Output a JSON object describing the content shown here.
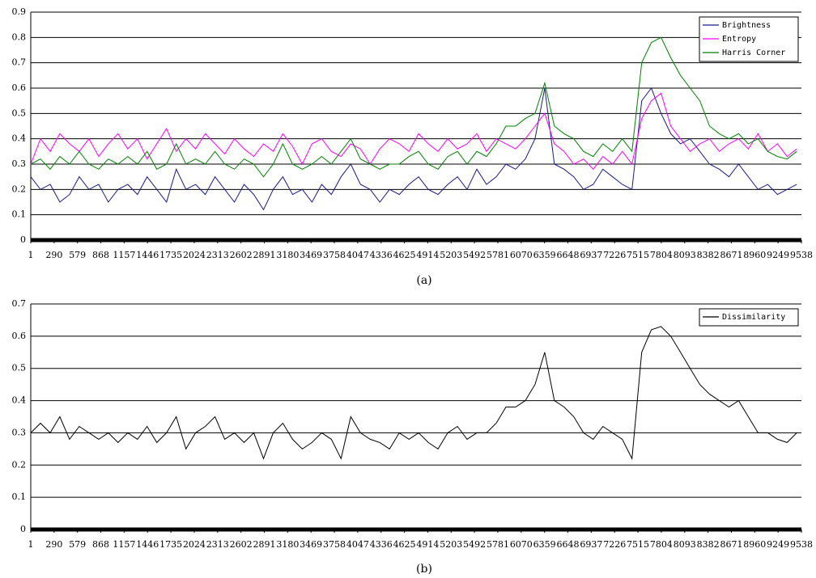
{
  "chart_data": [
    {
      "type": "line",
      "caption": "(a)",
      "legend": "upper right",
      "grid": true,
      "xlim": [
        1,
        9538
      ],
      "ylim": [
        0,
        0.9
      ],
      "yticks": [
        0,
        0.1,
        0.2,
        0.3,
        0.4,
        0.5,
        0.6,
        0.7,
        0.8,
        0.9
      ],
      "xticks": [
        1,
        290,
        579,
        868,
        1157,
        1446,
        1735,
        2024,
        2313,
        2602,
        2891,
        3180,
        3469,
        3758,
        4047,
        4336,
        4625,
        4914,
        5203,
        5492,
        5781,
        6070,
        6359,
        6648,
        6937,
        7226,
        7515,
        7804,
        8093,
        8382,
        8671,
        8960,
        9249,
        9538
      ],
      "x": [
        1,
        121,
        241,
        361,
        481,
        601,
        721,
        841,
        961,
        1081,
        1201,
        1321,
        1441,
        1561,
        1681,
        1801,
        1921,
        2041,
        2161,
        2281,
        2401,
        2521,
        2641,
        2761,
        2881,
        3001,
        3121,
        3241,
        3361,
        3481,
        3601,
        3721,
        3841,
        3961,
        4081,
        4201,
        4321,
        4441,
        4561,
        4681,
        4801,
        4921,
        5041,
        5161,
        5281,
        5401,
        5521,
        5641,
        5761,
        5881,
        6001,
        6121,
        6241,
        6361,
        6481,
        6601,
        6721,
        6841,
        6961,
        7081,
        7201,
        7321,
        7441,
        7561,
        7681,
        7801,
        7921,
        8041,
        8161,
        8281,
        8401,
        8521,
        8641,
        8761,
        8881,
        9001,
        9121,
        9241,
        9361,
        9481
      ],
      "series": [
        {
          "name": "Brightness",
          "color": "#1a1a8c",
          "values": [
            0.25,
            0.2,
            0.22,
            0.15,
            0.18,
            0.25,
            0.2,
            0.22,
            0.15,
            0.2,
            0.22,
            0.18,
            0.25,
            0.2,
            0.15,
            0.28,
            0.2,
            0.22,
            0.18,
            0.25,
            0.2,
            0.15,
            0.22,
            0.18,
            0.12,
            0.2,
            0.25,
            0.18,
            0.2,
            0.15,
            0.22,
            0.18,
            0.25,
            0.3,
            0.22,
            0.2,
            0.15,
            0.2,
            0.18,
            0.22,
            0.25,
            0.2,
            0.18,
            0.22,
            0.25,
            0.2,
            0.28,
            0.22,
            0.25,
            0.3,
            0.28,
            0.32,
            0.4,
            0.6,
            0.3,
            0.28,
            0.25,
            0.2,
            0.22,
            0.28,
            0.25,
            0.22,
            0.2,
            0.55,
            0.6,
            0.5,
            0.42,
            0.38,
            0.4,
            0.35,
            0.3,
            0.28,
            0.25,
            0.3,
            0.25,
            0.2,
            0.22,
            0.18,
            0.2,
            0.22
          ]
        },
        {
          "name": "Entropy",
          "color": "#ff00ff",
          "values": [
            0.3,
            0.4,
            0.35,
            0.42,
            0.38,
            0.35,
            0.4,
            0.33,
            0.38,
            0.42,
            0.36,
            0.4,
            0.32,
            0.38,
            0.44,
            0.35,
            0.4,
            0.36,
            0.42,
            0.38,
            0.34,
            0.4,
            0.36,
            0.33,
            0.38,
            0.35,
            0.42,
            0.37,
            0.3,
            0.38,
            0.4,
            0.35,
            0.33,
            0.38,
            0.36,
            0.3,
            0.36,
            0.4,
            0.38,
            0.35,
            0.42,
            0.38,
            0.35,
            0.4,
            0.36,
            0.38,
            0.42,
            0.35,
            0.4,
            0.38,
            0.36,
            0.4,
            0.45,
            0.5,
            0.38,
            0.35,
            0.3,
            0.32,
            0.28,
            0.33,
            0.3,
            0.35,
            0.3,
            0.48,
            0.55,
            0.58,
            0.45,
            0.4,
            0.35,
            0.38,
            0.4,
            0.35,
            0.38,
            0.4,
            0.36,
            0.42,
            0.35,
            0.38,
            0.33,
            0.36
          ]
        },
        {
          "name": "Harris Corner",
          "color": "#008000",
          "values": [
            0.3,
            0.32,
            0.28,
            0.33,
            0.3,
            0.35,
            0.3,
            0.28,
            0.32,
            0.3,
            0.33,
            0.3,
            0.35,
            0.28,
            0.3,
            0.38,
            0.3,
            0.32,
            0.3,
            0.35,
            0.3,
            0.28,
            0.32,
            0.3,
            0.25,
            0.3,
            0.38,
            0.3,
            0.28,
            0.3,
            0.33,
            0.3,
            0.35,
            0.4,
            0.32,
            0.3,
            0.28,
            0.3,
            0.3,
            0.33,
            0.35,
            0.3,
            0.28,
            0.33,
            0.35,
            0.3,
            0.35,
            0.33,
            0.38,
            0.45,
            0.45,
            0.48,
            0.5,
            0.62,
            0.45,
            0.42,
            0.4,
            0.35,
            0.33,
            0.38,
            0.35,
            0.4,
            0.35,
            0.7,
            0.78,
            0.8,
            0.72,
            0.65,
            0.6,
            0.55,
            0.45,
            0.42,
            0.4,
            0.42,
            0.38,
            0.4,
            0.35,
            0.33,
            0.32,
            0.35
          ]
        }
      ]
    },
    {
      "type": "line",
      "caption": "(b)",
      "legend": "upper right",
      "grid": true,
      "xlim": [
        1,
        9538
      ],
      "ylim": [
        0,
        0.7
      ],
      "yticks": [
        0,
        0.1,
        0.2,
        0.3,
        0.4,
        0.5,
        0.6,
        0.7
      ],
      "xticks": [
        1,
        290,
        579,
        868,
        1157,
        1446,
        1735,
        2024,
        2313,
        2602,
        2891,
        3180,
        3469,
        3758,
        4047,
        4336,
        4625,
        4914,
        5203,
        5492,
        5781,
        6070,
        6359,
        6648,
        6937,
        7226,
        7515,
        7804,
        8093,
        8382,
        8671,
        8960,
        9249,
        9538
      ],
      "x": [
        1,
        121,
        241,
        361,
        481,
        601,
        721,
        841,
        961,
        1081,
        1201,
        1321,
        1441,
        1561,
        1681,
        1801,
        1921,
        2041,
        2161,
        2281,
        2401,
        2521,
        2641,
        2761,
        2881,
        3001,
        3121,
        3241,
        3361,
        3481,
        3601,
        3721,
        3841,
        3961,
        4081,
        4201,
        4321,
        4441,
        4561,
        4681,
        4801,
        4921,
        5041,
        5161,
        5281,
        5401,
        5521,
        5641,
        5761,
        5881,
        6001,
        6121,
        6241,
        6361,
        6481,
        6601,
        6721,
        6841,
        6961,
        7081,
        7201,
        7321,
        7441,
        7561,
        7681,
        7801,
        7921,
        8041,
        8161,
        8281,
        8401,
        8521,
        8641,
        8761,
        8881,
        9001,
        9121,
        9241,
        9361,
        9481
      ],
      "series": [
        {
          "name": "Dissimilarity",
          "color": "#000000",
          "values": [
            0.3,
            0.33,
            0.3,
            0.35,
            0.28,
            0.32,
            0.3,
            0.28,
            0.3,
            0.27,
            0.3,
            0.28,
            0.32,
            0.27,
            0.3,
            0.35,
            0.25,
            0.3,
            0.32,
            0.35,
            0.28,
            0.3,
            0.27,
            0.3,
            0.22,
            0.3,
            0.33,
            0.28,
            0.25,
            0.27,
            0.3,
            0.28,
            0.22,
            0.35,
            0.3,
            0.28,
            0.27,
            0.25,
            0.3,
            0.28,
            0.3,
            0.27,
            0.25,
            0.3,
            0.32,
            0.28,
            0.3,
            0.3,
            0.33,
            0.38,
            0.38,
            0.4,
            0.45,
            0.55,
            0.4,
            0.38,
            0.35,
            0.3,
            0.28,
            0.32,
            0.3,
            0.28,
            0.22,
            0.55,
            0.62,
            0.63,
            0.6,
            0.55,
            0.5,
            0.45,
            0.42,
            0.4,
            0.38,
            0.4,
            0.35,
            0.3,
            0.3,
            0.28,
            0.27,
            0.3
          ]
        }
      ]
    }
  ]
}
